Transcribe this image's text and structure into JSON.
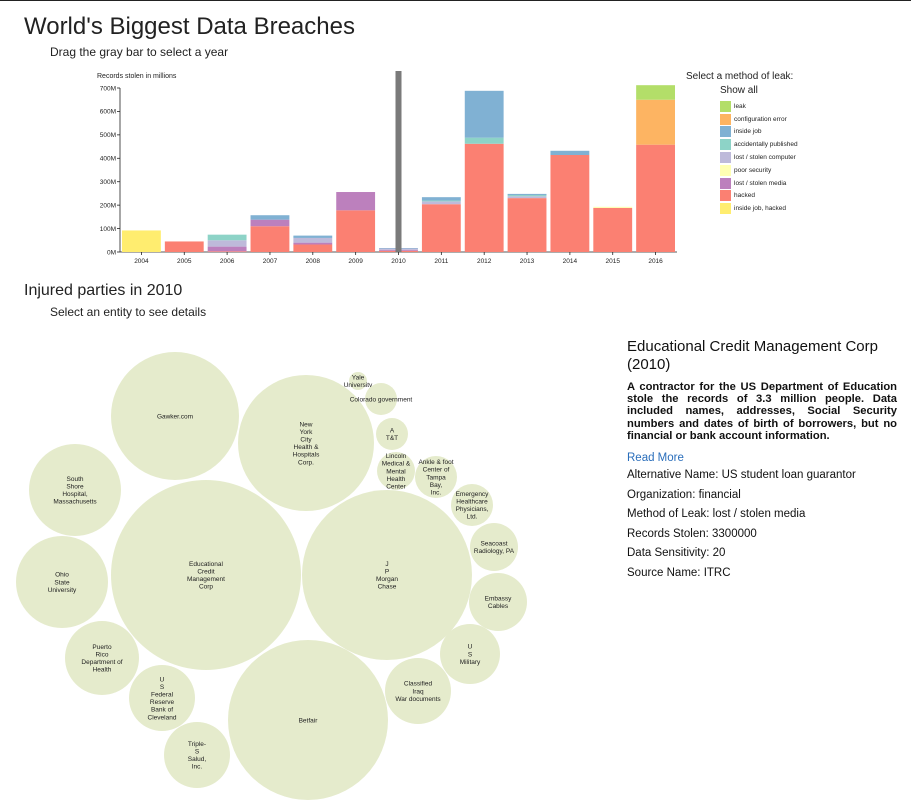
{
  "header": {
    "title": "World's Biggest Data Breaches",
    "subtitle": "Drag the gray bar to select a year"
  },
  "legend": {
    "title": "Select a method of leak:",
    "show_all": "Show all",
    "items": [
      {
        "label": "leak",
        "color": "#b3de69"
      },
      {
        "label": "configuration error",
        "color": "#fdb462"
      },
      {
        "label": "inside job",
        "color": "#80b1d3"
      },
      {
        "label": "accidentally published",
        "color": "#8dd3c7"
      },
      {
        "label": "lost / stolen computer",
        "color": "#bebada"
      },
      {
        "label": "poor security",
        "color": "#ffffb3"
      },
      {
        "label": "lost / stolen media",
        "color": "#bc80bd"
      },
      {
        "label": "hacked",
        "color": "#fb8072"
      },
      {
        "label": "inside job, hacked",
        "color": "#ffed6f"
      }
    ]
  },
  "chart_data": [
    {
      "type": "bar",
      "stacked": true,
      "ylabel": "Records stolen in millions",
      "ylim": [
        0,
        700
      ],
      "yticks": [
        "0M",
        "100M",
        "200M",
        "300M",
        "400M",
        "500M",
        "600M",
        "700M"
      ],
      "categories": [
        "2004",
        "2005",
        "2006",
        "2007",
        "2008",
        "2009",
        "2010",
        "2011",
        "2012",
        "2013",
        "2014",
        "2015",
        "2016"
      ],
      "selected_year": "2010",
      "series": [
        {
          "name": "inside job, hacked",
          "color": "#ffed6f",
          "values": [
            92,
            0,
            0,
            0,
            0,
            0,
            0,
            0,
            0,
            0,
            0,
            0,
            0
          ]
        },
        {
          "name": "hacked",
          "color": "#fb8072",
          "values": [
            0,
            45,
            3,
            110,
            32,
            178,
            5,
            204,
            462,
            230,
            414,
            188,
            458
          ]
        },
        {
          "name": "lost / stolen media",
          "color": "#bc80bd",
          "values": [
            0,
            0,
            20,
            28,
            8,
            78,
            4,
            0,
            0,
            0,
            0,
            0,
            0
          ]
        },
        {
          "name": "poor security",
          "color": "#ffffb3",
          "values": [
            0,
            0,
            0,
            0,
            0,
            0,
            0,
            0,
            0,
            0,
            0,
            5,
            0
          ]
        },
        {
          "name": "lost / stolen computer",
          "color": "#bebada",
          "values": [
            0,
            0,
            27,
            0,
            20,
            0,
            6,
            12,
            0,
            8,
            0,
            0,
            0
          ]
        },
        {
          "name": "accidentally published",
          "color": "#8dd3c7",
          "values": [
            0,
            0,
            24,
            0,
            0,
            0,
            0,
            4,
            26,
            5,
            0,
            0,
            0
          ]
        },
        {
          "name": "inside job",
          "color": "#80b1d3",
          "values": [
            0,
            0,
            0,
            19,
            10,
            0,
            2,
            14,
            200,
            5,
            18,
            0,
            0
          ]
        },
        {
          "name": "configuration error",
          "color": "#fdb462",
          "values": [
            0,
            0,
            0,
            0,
            0,
            0,
            0,
            0,
            0,
            0,
            0,
            0,
            192
          ]
        },
        {
          "name": "leak",
          "color": "#b3de69",
          "values": [
            0,
            0,
            0,
            0,
            0,
            0,
            0,
            0,
            0,
            0,
            0,
            0,
            62
          ]
        }
      ]
    }
  ],
  "injured": {
    "title": "Injured parties in 2010",
    "subtitle": "Select an entity to see details",
    "bubble_color": "#e5ebcc",
    "entities": [
      {
        "name": "Gawker.com",
        "lines": [
          "Gawker.com"
        ]
      },
      {
        "name": "New York City Health & Hospitals Corp.",
        "lines": [
          "New",
          "York",
          "City",
          "Health &",
          "Hospitals",
          "Corp."
        ]
      },
      {
        "name": "Yale University",
        "lines": [
          "Yale",
          "University"
        ]
      },
      {
        "name": "Colorado government",
        "lines": [
          "Colorado government"
        ]
      },
      {
        "name": "AT&T",
        "lines": [
          "A",
          "T&T"
        ]
      },
      {
        "name": "Lincoln Medical & Mental Health Center",
        "lines": [
          "Lincoln",
          "Medical &",
          "Mental",
          "Health",
          "Center"
        ]
      },
      {
        "name": "Ankle & foot Center of Tampa Bay, Inc.",
        "lines": [
          "Ankle & foot",
          "Center of",
          "Tampa",
          "Bay,",
          "Inc."
        ]
      },
      {
        "name": "Emergency Healthcare Physicians, Ltd.",
        "lines": [
          "Emergency",
          "Healthcare",
          "Physicians,",
          "Ltd."
        ]
      },
      {
        "name": "South Shore Hospital, Massachusetts",
        "lines": [
          "South",
          "Shore",
          "Hospital,",
          "Massachusetts"
        ]
      },
      {
        "name": "Educational Credit Management Corp",
        "lines": [
          "Educational",
          "Credit",
          "Management",
          "Corp"
        ]
      },
      {
        "name": "J P Morgan Chase",
        "lines": [
          "J",
          "P",
          "Morgan",
          "Chase"
        ]
      },
      {
        "name": "Seacoast Radiology, PA",
        "lines": [
          "Seacoast",
          "Radiology, PA"
        ]
      },
      {
        "name": "Ohio State University",
        "lines": [
          "Ohio",
          "State",
          "University"
        ]
      },
      {
        "name": "Embassy Cables",
        "lines": [
          "Embassy",
          "Cables"
        ]
      },
      {
        "name": "Puerto Rico Department of Health",
        "lines": [
          "Puerto",
          "Rico",
          "Department of",
          "Health"
        ]
      },
      {
        "name": "US Military",
        "lines": [
          "U",
          "S",
          "Military"
        ]
      },
      {
        "name": "Classified Iraq War documents",
        "lines": [
          "Classified",
          "Iraq",
          "War documents"
        ]
      },
      {
        "name": "US Federal Reserve Bank of Cleveland",
        "lines": [
          "U",
          "S",
          "Federal",
          "Reserve",
          "Bank of",
          "Cleveland"
        ]
      },
      {
        "name": "Betfair",
        "lines": [
          "Betfair"
        ]
      },
      {
        "name": "Triple-S Salud, Inc.",
        "lines": [
          "Triple-",
          "S",
          "Salud,",
          "Inc."
        ]
      }
    ]
  },
  "details": {
    "title": "Educational Credit Management Corp (2010)",
    "description": "A contractor for the US Department of Education stole the records of 3.3 million people. Data included names, addresses, Social Security numbers and dates of birth of borrowers, but no financial or bank account information.",
    "read_more": "Read More",
    "alt_name": "Alternative Name: US student loan guarantor",
    "organization": "Organization: financial",
    "method": "Method of Leak: lost / stolen media",
    "records": "Records Stolen: 3300000",
    "sensitivity": "Data Sensitivity: 20",
    "source": "Source Name: ITRC"
  }
}
